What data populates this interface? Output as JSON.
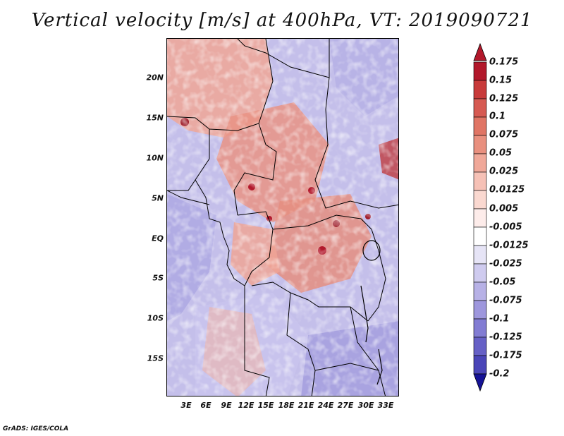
{
  "title": "Vertical velocity [m/s] at 400hPa, VT: 2019090721",
  "footer": "GrADS: IGES/COLA",
  "lat_ticks": [
    "20N",
    "15N",
    "10N",
    "5N",
    "EQ",
    "5S",
    "10S",
    "15S"
  ],
  "lat_values": [
    20,
    15,
    10,
    5,
    0,
    -5,
    -10,
    -15
  ],
  "lon_ticks": [
    "3E",
    "6E",
    "9E",
    "12E",
    "15E",
    "18E",
    "21E",
    "24E",
    "27E",
    "30E",
    "33E"
  ],
  "lon_values": [
    3,
    6,
    9,
    12,
    15,
    18,
    21,
    24,
    27,
    30,
    33
  ],
  "map_extent": {
    "lon": [
      0,
      34.5
    ],
    "lat": [
      -20,
      24.5
    ]
  },
  "colorbar": {
    "levels": [
      "0.175",
      "0.15",
      "0.125",
      "0.1",
      "0.075",
      "0.05",
      "0.025",
      "0.0125",
      "0.005",
      "-0.005",
      "-0.0125",
      "-0.025",
      "-0.05",
      "-0.075",
      "-0.1",
      "-0.125",
      "-0.175",
      "-0.2"
    ],
    "colors": [
      "#b2182b",
      "#c83a3a",
      "#d65a52",
      "#e07565",
      "#e9907f",
      "#f0a899",
      "#f6c1b6",
      "#fad8d0",
      "#fdecea",
      "#ffffff",
      "#e6e4f6",
      "#cfcbef",
      "#b7b1e6",
      "#9e97dd",
      "#827cd3",
      "#6660c6",
      "#4a45b8",
      "#2e2aa6",
      "#151296"
    ],
    "top_color": "#b2182b",
    "bottom_color": "#151296"
  }
}
